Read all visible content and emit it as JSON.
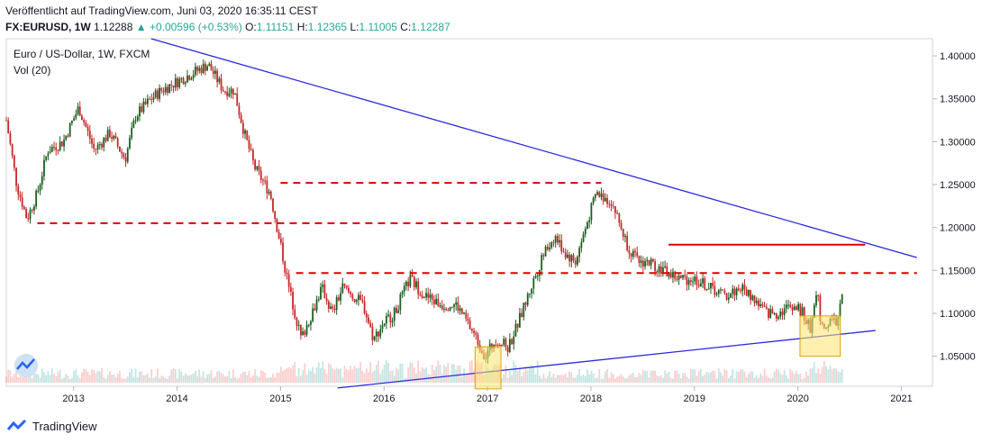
{
  "header": {
    "published": "Veröffentlicht auf TradingView.com, Juni 03, 2020 16:35:11 CEST",
    "symbol": "FX:EURUSD, 1W",
    "last": "1.12288",
    "change": "+0.00596 (+0.53%)",
    "open_label": "O:",
    "open": "1.11151",
    "high_label": "H:",
    "high": "1.12365",
    "low_label": "L:",
    "low": "1.11005",
    "close_label": "C:",
    "close": "1.12287"
  },
  "legend": {
    "title": "Euro / US-Dollar, 1W, FXCM",
    "indicator": "Vol (20)"
  },
  "footer": {
    "brand": "TradingView"
  },
  "colors": {
    "up": "#26a69a",
    "down": "#ef5350",
    "candle_down": "#c62828",
    "candle_up": "#1b5e20",
    "trendline": "#2a2ae0",
    "level": "#e00000",
    "box_fill": "#ffe36e",
    "box_stroke": "#e0a200",
    "axis_text": "#131722",
    "grid": "#e0e3eb"
  },
  "chart_data": {
    "type": "candlestick",
    "symbol": "FX:EURUSD",
    "x_tick_labels": [
      "2013",
      "2014",
      "2015",
      "2016",
      "2017",
      "2018",
      "2019",
      "2020",
      "2021"
    ],
    "y_tick_labels": [
      "1.40000",
      "1.35000",
      "1.30000",
      "1.25000",
      "1.20000",
      "1.15000",
      "1.10000",
      "1.05000"
    ],
    "ylim": [
      1.015,
      1.42
    ],
    "xlim": [
      2012.35,
      2021.3
    ],
    "price_path": [
      [
        2012.35,
        1.325
      ],
      [
        2012.45,
        1.25
      ],
      [
        2012.55,
        1.21
      ],
      [
        2012.65,
        1.24
      ],
      [
        2012.75,
        1.29
      ],
      [
        2012.9,
        1.3
      ],
      [
        2013.05,
        1.34
      ],
      [
        2013.2,
        1.29
      ],
      [
        2013.35,
        1.31
      ],
      [
        2013.5,
        1.28
      ],
      [
        2013.6,
        1.33
      ],
      [
        2013.75,
        1.35
      ],
      [
        2013.85,
        1.36
      ],
      [
        2014.0,
        1.37
      ],
      [
        2014.15,
        1.38
      ],
      [
        2014.3,
        1.39
      ],
      [
        2014.45,
        1.36
      ],
      [
        2014.55,
        1.36
      ],
      [
        2014.65,
        1.31
      ],
      [
        2014.75,
        1.27
      ],
      [
        2014.9,
        1.24
      ],
      [
        2015.0,
        1.18
      ],
      [
        2015.08,
        1.13
      ],
      [
        2015.2,
        1.07
      ],
      [
        2015.3,
        1.1
      ],
      [
        2015.4,
        1.13
      ],
      [
        2015.5,
        1.1
      ],
      [
        2015.6,
        1.13
      ],
      [
        2015.7,
        1.12
      ],
      [
        2015.8,
        1.11
      ],
      [
        2015.9,
        1.07
      ],
      [
        2016.0,
        1.09
      ],
      [
        2016.1,
        1.1
      ],
      [
        2016.25,
        1.14
      ],
      [
        2016.4,
        1.12
      ],
      [
        2016.55,
        1.11
      ],
      [
        2016.7,
        1.11
      ],
      [
        2016.85,
        1.08
      ],
      [
        2016.98,
        1.05
      ],
      [
        2017.08,
        1.07
      ],
      [
        2017.2,
        1.06
      ],
      [
        2017.3,
        1.09
      ],
      [
        2017.45,
        1.14
      ],
      [
        2017.55,
        1.17
      ],
      [
        2017.65,
        1.19
      ],
      [
        2017.75,
        1.17
      ],
      [
        2017.85,
        1.16
      ],
      [
        2017.95,
        1.2
      ],
      [
        2018.05,
        1.24
      ],
      [
        2018.2,
        1.23
      ],
      [
        2018.35,
        1.18
      ],
      [
        2018.45,
        1.16
      ],
      [
        2018.55,
        1.16
      ],
      [
        2018.7,
        1.15
      ],
      [
        2018.85,
        1.14
      ],
      [
        2019.0,
        1.14
      ],
      [
        2019.15,
        1.13
      ],
      [
        2019.3,
        1.12
      ],
      [
        2019.45,
        1.13
      ],
      [
        2019.55,
        1.12
      ],
      [
        2019.7,
        1.1
      ],
      [
        2019.8,
        1.1
      ],
      [
        2019.95,
        1.11
      ],
      [
        2020.05,
        1.1
      ],
      [
        2020.12,
        1.08
      ],
      [
        2020.18,
        1.13
      ],
      [
        2020.23,
        1.08
      ],
      [
        2020.3,
        1.09
      ],
      [
        2020.38,
        1.09
      ],
      [
        2020.43,
        1.12
      ]
    ],
    "trendlines": [
      {
        "from": [
          2013.75,
          1.42
        ],
        "to": [
          2021.15,
          1.165
        ]
      },
      {
        "from": [
          2015.55,
          1.013
        ],
        "to": [
          2020.75,
          1.08
        ]
      }
    ],
    "horizontal_levels": [
      {
        "price": 1.252,
        "from": 2015.0,
        "to": 2018.1,
        "style": "dashed"
      },
      {
        "price": 1.205,
        "from": 2012.65,
        "to": 2017.7,
        "style": "dashed"
      },
      {
        "price": 1.147,
        "from": 2015.15,
        "to": 2021.15,
        "style": "dashed"
      },
      {
        "price": 1.18,
        "from": 2018.75,
        "to": 2020.65,
        "style": "solid"
      }
    ],
    "boxes": [
      {
        "x": [
          2016.88,
          2017.13
        ],
        "y": [
          1.012,
          1.061
        ]
      },
      {
        "x": [
          2020.02,
          2020.41
        ],
        "y": [
          1.05,
          1.097
        ]
      }
    ]
  }
}
